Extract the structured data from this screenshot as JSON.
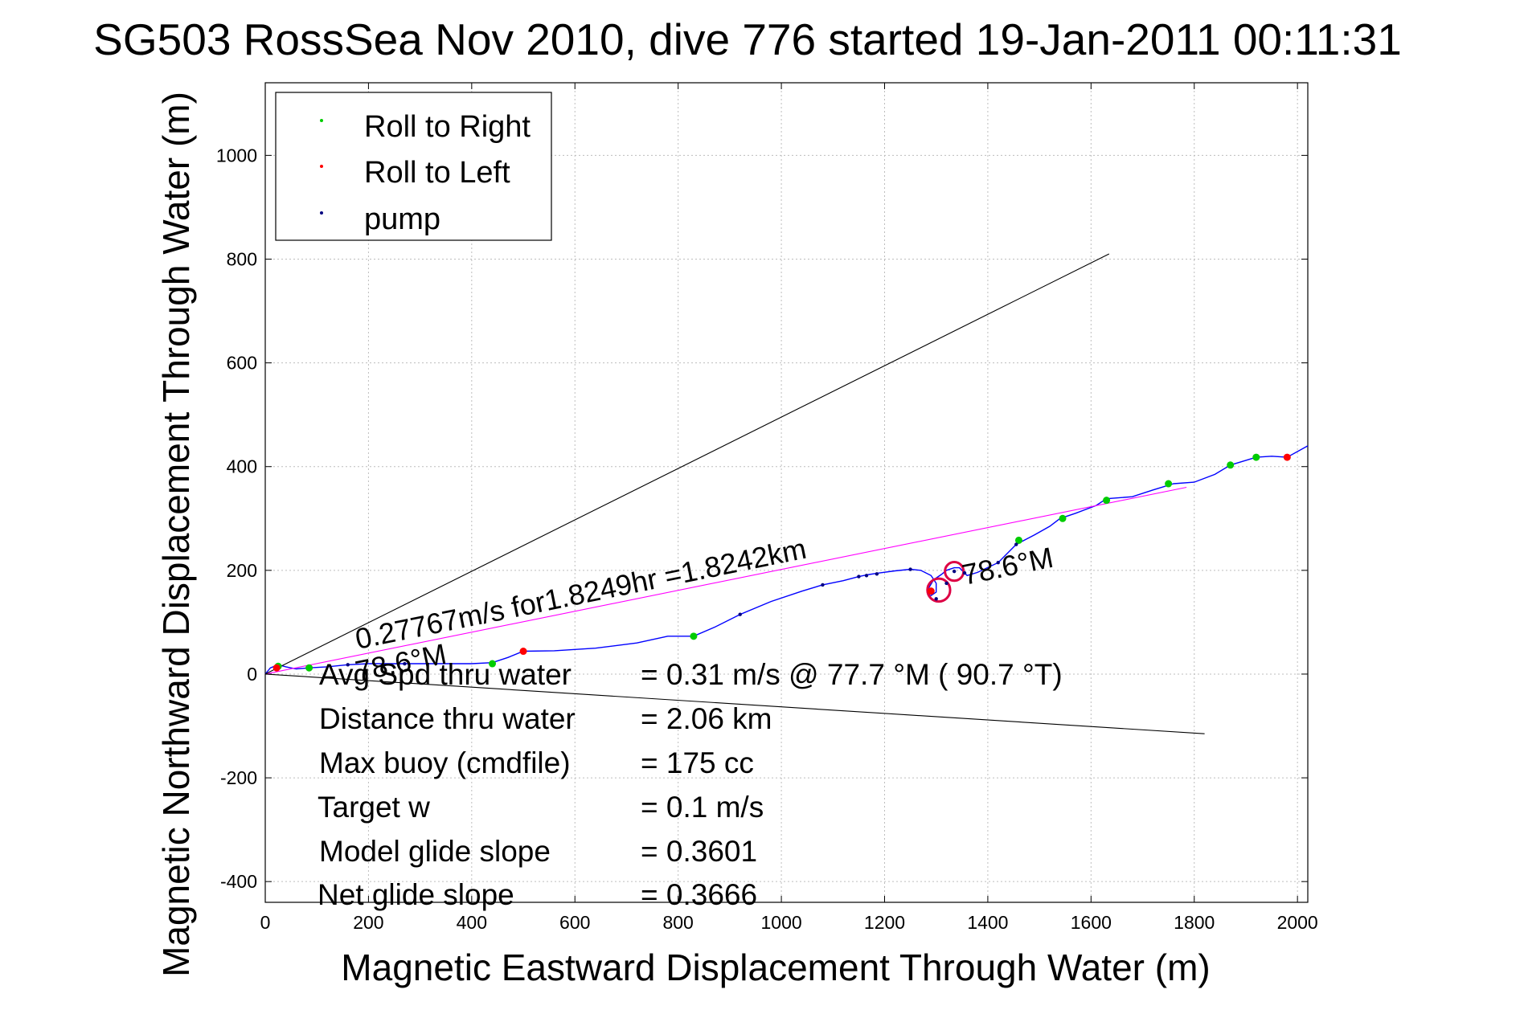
{
  "chart_data": {
    "type": "line",
    "title": "SG503 RossSea Nov 2010, dive 776 started 19-Jan-2011 00:11:31",
    "xlabel": "Magnetic Eastward Displacement Through Water (m)",
    "ylabel": "Magnetic Northward Displacement Through Water (m)",
    "xlim": [
      0,
      2020
    ],
    "ylim": [
      -440,
      1140
    ],
    "xticks": [
      0,
      200,
      400,
      600,
      800,
      1000,
      1200,
      1400,
      1600,
      1800,
      2000
    ],
    "yticks": [
      -400,
      -200,
      0,
      200,
      400,
      600,
      800,
      1000
    ],
    "grid": true,
    "legend_position": "top-left",
    "legend": [
      {
        "label": "Roll to Right",
        "color": "#00cc00"
      },
      {
        "label": "Roll to Left",
        "color": "#ff0000"
      },
      {
        "label": "pump",
        "color": "#000080"
      }
    ],
    "series": [
      {
        "kind": "track",
        "color": "#0000ff",
        "x": [
          0,
          10,
          25,
          40,
          60,
          85,
          120,
          160,
          200,
          250,
          300,
          350,
          400,
          440,
          470,
          500,
          560,
          640,
          720,
          780,
          830,
          870,
          920,
          980,
          1040,
          1080,
          1120,
          1150,
          1170,
          1190,
          1220,
          1250,
          1270,
          1290,
          1300,
          1300,
          1288,
          1285,
          1295,
          1310,
          1320,
          1335,
          1345,
          1355,
          1360,
          1380,
          1420,
          1455,
          1490,
          1520,
          1540,
          1570,
          1610,
          1630,
          1680,
          1720,
          1760,
          1800,
          1840,
          1870,
          1920,
          1950,
          1980,
          2020
        ],
        "y": [
          0,
          12,
          18,
          14,
          10,
          12,
          14,
          18,
          20,
          20,
          20,
          20,
          20,
          22,
          32,
          44,
          45,
          50,
          60,
          73,
          73,
          90,
          115,
          140,
          160,
          172,
          180,
          188,
          192,
          195,
          199,
          202,
          200,
          190,
          175,
          158,
          150,
          165,
          182,
          192,
          200,
          205,
          205,
          195,
          190,
          196,
          215,
          250,
          268,
          285,
          300,
          310,
          325,
          338,
          342,
          355,
          367,
          370,
          385,
          403,
          418,
          420,
          418,
          440
        ]
      },
      {
        "kind": "loop",
        "color": "#dd0044",
        "cx": 1305,
        "cy": 162,
        "r": 22
      },
      {
        "kind": "loop",
        "color": "#dd0044",
        "cx": 1335,
        "cy": 198,
        "r": 18
      },
      {
        "kind": "fit",
        "color": "#ff00ff",
        "x": [
          0,
          1785
        ],
        "y": [
          0,
          360
        ]
      },
      {
        "kind": "heading_line",
        "color": "#000000",
        "x": [
          0,
          1635
        ],
        "y": [
          0,
          810
        ]
      },
      {
        "kind": "heading_line",
        "color": "#000000",
        "x": [
          0,
          1820
        ],
        "y": [
          0,
          -115
        ]
      }
    ],
    "markers": {
      "roll_right": {
        "color": "#00cc00",
        "x": [
          25,
          85,
          440,
          830,
          1460,
          1545,
          1630,
          1750,
          1870,
          1920
        ],
        "y": [
          15,
          12,
          20,
          73,
          258,
          300,
          335,
          367,
          403,
          418
        ]
      },
      "roll_left": {
        "color": "#ff0000",
        "x": [
          22,
          500,
          1290,
          1980
        ],
        "y": [
          12,
          44,
          160,
          418
        ]
      },
      "pump": {
        "color": "#000080",
        "x": [
          160,
          270,
          920,
          1080,
          1150,
          1165,
          1185,
          1250,
          1300,
          1320,
          1335,
          1355,
          1420,
          1455
        ],
        "y": [
          18,
          20,
          115,
          172,
          188,
          190,
          193,
          202,
          145,
          175,
          198,
          195,
          215,
          250
        ]
      }
    },
    "annotations": {
      "speed_text": "0.27767m/s for1.8249hr =1.8242km",
      "heading_upper": "78.6°M",
      "heading_lower": "78.6°M"
    },
    "stats": [
      {
        "label": "Avg Spd thru water",
        "value": "=  0.31 m/s @  77.7 °M ( 90.7 °T)"
      },
      {
        "label": "Distance thru water",
        "value": "=  2.06 km"
      },
      {
        "label": "Max buoy (cmdfile)",
        "value": "= 175 cc"
      },
      {
        "label": "Target w",
        "value": "= 0.1 m/s"
      },
      {
        "label": "Model glide slope",
        "value": "= 0.3601"
      },
      {
        "label": "Net glide slope",
        "value": "= 0.3666"
      }
    ]
  }
}
